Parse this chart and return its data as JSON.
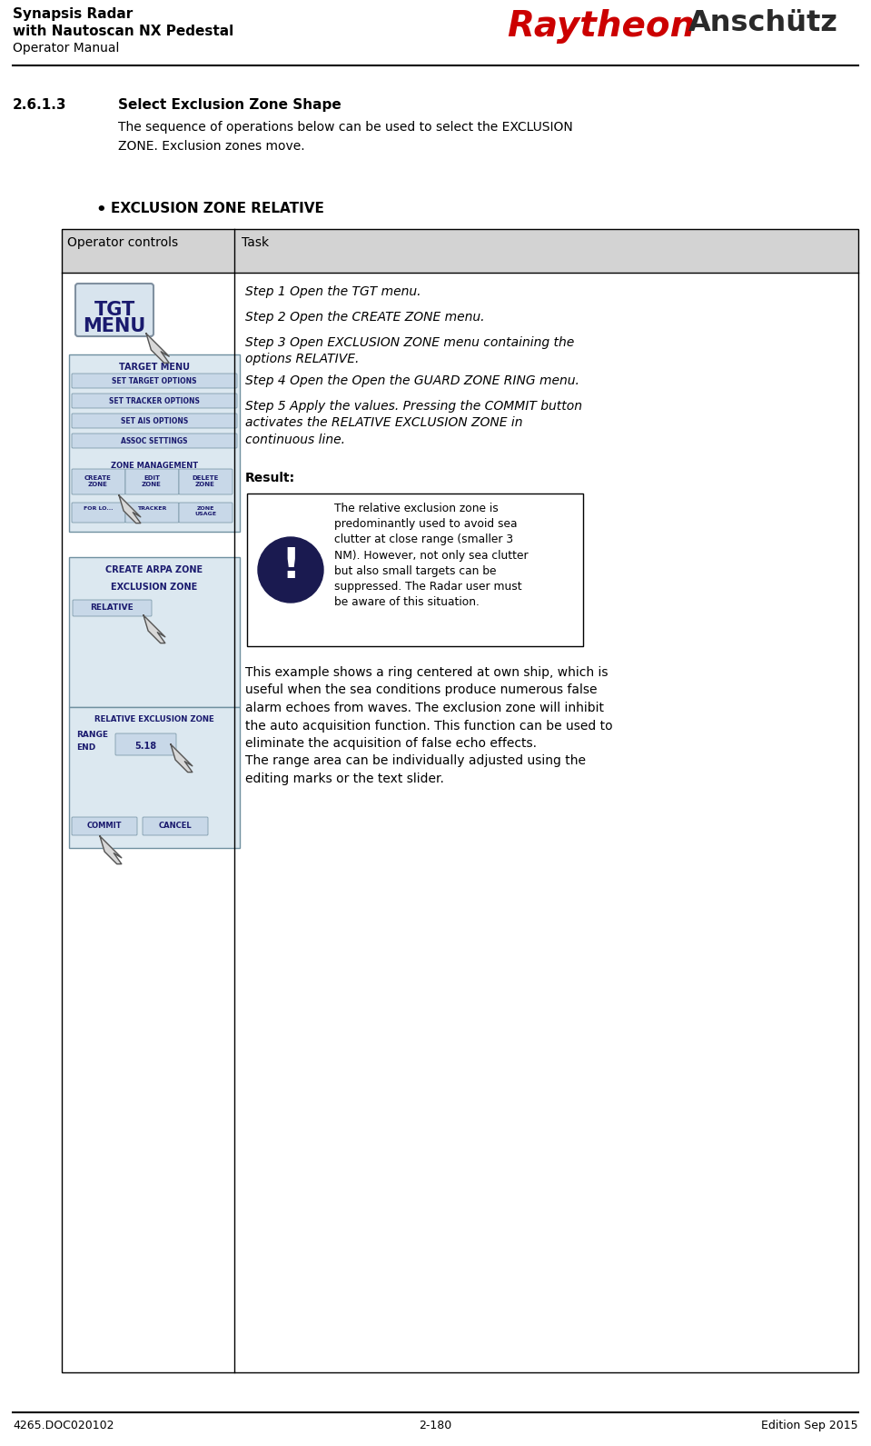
{
  "title_line1": "Synapsis Radar",
  "title_line2": "with Nautoscan NX Pedestal",
  "title_line3": "Operator Manual",
  "logo_raytheon": "Raytheon",
  "logo_anschutz": "Anschütz",
  "section_number": "2.6.1.3",
  "section_title": "Select Exclusion Zone Shape",
  "section_intro": "The sequence of operations below can be used to select the EXCLUSION\nZONE. Exclusion zones move.",
  "bullet_title": "EXCLUSION ZONE RELATIVE",
  "col1_header": "Operator controls",
  "col2_header": "Task",
  "step1": "Step 1 Open the TGT menu.",
  "step2": "Step 2 Open the CREATE ZONE menu.",
  "step3": "Step 3 Open EXCLUSION ZONE menu containing the\noptions RELATIVE.",
  "step4": "Step 4 Open the Open the GUARD ZONE RING menu.",
  "step5": "Step 5 Apply the values. Pressing the COMMIT button\nactivates the RELATIVE EXCLUSION ZONE in\ncontinuous line.",
  "result_label": "Result:",
  "warning_text": "The relative exclusion zone is\npredominantly used to avoid sea\nclutter at close range (smaller 3\nNM). However, not only sea clutter\nbut also small targets can be\nsuppressed. The Radar user must\nbe aware of this situation.",
  "bottom_text": "This example shows a ring centered at own ship, which is\nuseful when the sea conditions produce numerous false\nalarm echoes from waves. The exclusion zone will inhibit\nthe auto acquisition function. This function can be used to\neliminate the acquisition of false echo effects.\nThe range area can be individually adjusted using the\nediting marks or the text slider.",
  "footer_left": "4265.DOC020102",
  "footer_center": "2-180",
  "footer_right": "Edition Sep 2015",
  "bg_color": "#ffffff",
  "table_header_bg": "#d3d3d3",
  "table_border": "#000000",
  "raytheon_color": "#cc0000",
  "anschutz_color": "#2a2a2a",
  "panel_bg": "#dce8f0",
  "panel_border": "#7090a0",
  "btn_bg": "#dce8f0",
  "btn_border": "#7090a0",
  "btn_text": "#1a1a6e",
  "panel_title_color": "#1a1a6e",
  "warning_border": "#000000",
  "warning_bg": "#ffffff",
  "icon_color": "#1a1a50"
}
